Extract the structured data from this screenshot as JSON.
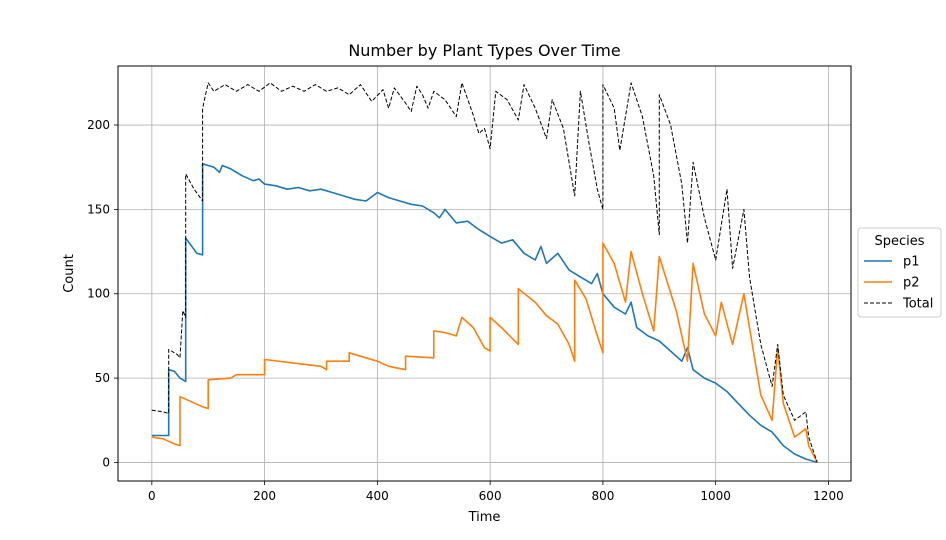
{
  "chart_data": {
    "type": "line",
    "title": "Number by Plant Types Over Time",
    "xlabel": "Time",
    "ylabel": "Count",
    "xlim": [
      -60,
      1240
    ],
    "ylim": [
      -11,
      235
    ],
    "xticks": [
      0,
      200,
      400,
      600,
      800,
      1000,
      1200
    ],
    "yticks": [
      0,
      50,
      100,
      150,
      200
    ],
    "grid": true,
    "legend": {
      "title": "Species",
      "placement": "right-outside"
    },
    "series": [
      {
        "name": "p1",
        "color": "#1f77b4",
        "style": "solid",
        "points": [
          [
            0,
            16
          ],
          [
            30,
            16
          ],
          [
            30,
            55
          ],
          [
            40,
            54
          ],
          [
            50,
            50
          ],
          [
            60,
            48
          ],
          [
            60,
            133
          ],
          [
            80,
            124
          ],
          [
            90,
            123
          ],
          [
            90,
            177
          ],
          [
            100,
            176
          ],
          [
            110,
            175
          ],
          [
            120,
            172
          ],
          [
            125,
            176
          ],
          [
            140,
            174
          ],
          [
            160,
            170
          ],
          [
            180,
            167
          ],
          [
            190,
            168
          ],
          [
            200,
            165
          ],
          [
            220,
            164
          ],
          [
            240,
            162
          ],
          [
            260,
            163
          ],
          [
            280,
            161
          ],
          [
            300,
            162
          ],
          [
            320,
            160
          ],
          [
            340,
            158
          ],
          [
            360,
            156
          ],
          [
            380,
            155
          ],
          [
            400,
            160
          ],
          [
            420,
            157
          ],
          [
            440,
            155
          ],
          [
            460,
            153
          ],
          [
            480,
            152
          ],
          [
            500,
            148
          ],
          [
            510,
            145
          ],
          [
            520,
            150
          ],
          [
            540,
            142
          ],
          [
            560,
            143
          ],
          [
            580,
            138
          ],
          [
            600,
            134
          ],
          [
            620,
            130
          ],
          [
            640,
            132
          ],
          [
            660,
            124
          ],
          [
            680,
            120
          ],
          [
            690,
            128
          ],
          [
            700,
            118
          ],
          [
            720,
            124
          ],
          [
            740,
            114
          ],
          [
            760,
            110
          ],
          [
            780,
            106
          ],
          [
            790,
            112
          ],
          [
            800,
            100
          ],
          [
            820,
            92
          ],
          [
            840,
            88
          ],
          [
            850,
            95
          ],
          [
            860,
            80
          ],
          [
            880,
            75
          ],
          [
            900,
            72
          ],
          [
            920,
            66
          ],
          [
            940,
            60
          ],
          [
            950,
            68
          ],
          [
            960,
            55
          ],
          [
            980,
            50
          ],
          [
            1000,
            47
          ],
          [
            1020,
            42
          ],
          [
            1040,
            35
          ],
          [
            1060,
            28
          ],
          [
            1080,
            22
          ],
          [
            1100,
            18
          ],
          [
            1110,
            14
          ],
          [
            1120,
            10
          ],
          [
            1140,
            5
          ],
          [
            1160,
            2
          ],
          [
            1180,
            0
          ]
        ]
      },
      {
        "name": "p2",
        "color": "#ff7f0e",
        "style": "solid",
        "points": [
          [
            0,
            15
          ],
          [
            20,
            14
          ],
          [
            40,
            11
          ],
          [
            50,
            10
          ],
          [
            50,
            39
          ],
          [
            70,
            36
          ],
          [
            90,
            33
          ],
          [
            100,
            32
          ],
          [
            100,
            49
          ],
          [
            140,
            50
          ],
          [
            150,
            52
          ],
          [
            200,
            52
          ],
          [
            200,
            61
          ],
          [
            250,
            59
          ],
          [
            300,
            57
          ],
          [
            310,
            55
          ],
          [
            310,
            60
          ],
          [
            350,
            60
          ],
          [
            350,
            65
          ],
          [
            400,
            60
          ],
          [
            420,
            57
          ],
          [
            450,
            55
          ],
          [
            450,
            63
          ],
          [
            500,
            62
          ],
          [
            500,
            78
          ],
          [
            520,
            77
          ],
          [
            540,
            75
          ],
          [
            550,
            86
          ],
          [
            570,
            80
          ],
          [
            590,
            68
          ],
          [
            600,
            66
          ],
          [
            600,
            86
          ],
          [
            620,
            80
          ],
          [
            650,
            70
          ],
          [
            650,
            103
          ],
          [
            680,
            95
          ],
          [
            700,
            87
          ],
          [
            720,
            82
          ],
          [
            740,
            70
          ],
          [
            750,
            60
          ],
          [
            750,
            108
          ],
          [
            770,
            97
          ],
          [
            790,
            75
          ],
          [
            800,
            65
          ],
          [
            800,
            130
          ],
          [
            820,
            118
          ],
          [
            840,
            95
          ],
          [
            850,
            125
          ],
          [
            870,
            100
          ],
          [
            890,
            78
          ],
          [
            900,
            122
          ],
          [
            930,
            90
          ],
          [
            950,
            60
          ],
          [
            960,
            118
          ],
          [
            980,
            88
          ],
          [
            1000,
            75
          ],
          [
            1010,
            95
          ],
          [
            1030,
            70
          ],
          [
            1050,
            100
          ],
          [
            1070,
            60
          ],
          [
            1080,
            40
          ],
          [
            1100,
            25
          ],
          [
            1110,
            68
          ],
          [
            1120,
            35
          ],
          [
            1140,
            15
          ],
          [
            1160,
            20
          ],
          [
            1165,
            10
          ],
          [
            1180,
            0
          ]
        ]
      },
      {
        "name": "Total",
        "color": "#000000",
        "style": "dashed",
        "points": [
          [
            0,
            31
          ],
          [
            20,
            30
          ],
          [
            30,
            29
          ],
          [
            30,
            67
          ],
          [
            45,
            64
          ],
          [
            50,
            62
          ],
          [
            55,
            90
          ],
          [
            60,
            86
          ],
          [
            60,
            171
          ],
          [
            75,
            162
          ],
          [
            90,
            155
          ],
          [
            90,
            210
          ],
          [
            100,
            225
          ],
          [
            110,
            220
          ],
          [
            130,
            224
          ],
          [
            150,
            220
          ],
          [
            170,
            224
          ],
          [
            190,
            220
          ],
          [
            210,
            225
          ],
          [
            230,
            220
          ],
          [
            250,
            223
          ],
          [
            270,
            220
          ],
          [
            290,
            224
          ],
          [
            310,
            220
          ],
          [
            330,
            222
          ],
          [
            350,
            218
          ],
          [
            370,
            224
          ],
          [
            390,
            214
          ],
          [
            410,
            221
          ],
          [
            420,
            210
          ],
          [
            430,
            222
          ],
          [
            450,
            213
          ],
          [
            460,
            208
          ],
          [
            470,
            223
          ],
          [
            480,
            218
          ],
          [
            490,
            210
          ],
          [
            500,
            220
          ],
          [
            520,
            215
          ],
          [
            540,
            205
          ],
          [
            550,
            225
          ],
          [
            570,
            206
          ],
          [
            580,
            195
          ],
          [
            590,
            198
          ],
          [
            600,
            186
          ],
          [
            610,
            220
          ],
          [
            630,
            215
          ],
          [
            650,
            203
          ],
          [
            660,
            224
          ],
          [
            680,
            210
          ],
          [
            700,
            192
          ],
          [
            710,
            215
          ],
          [
            730,
            198
          ],
          [
            750,
            158
          ],
          [
            760,
            220
          ],
          [
            775,
            190
          ],
          [
            790,
            162
          ],
          [
            800,
            150
          ],
          [
            800,
            224
          ],
          [
            820,
            210
          ],
          [
            830,
            185
          ],
          [
            850,
            225
          ],
          [
            870,
            205
          ],
          [
            890,
            170
          ],
          [
            900,
            135
          ],
          [
            900,
            218
          ],
          [
            920,
            200
          ],
          [
            940,
            165
          ],
          [
            950,
            130
          ],
          [
            960,
            178
          ],
          [
            980,
            145
          ],
          [
            1000,
            120
          ],
          [
            1020,
            162
          ],
          [
            1030,
            115
          ],
          [
            1050,
            150
          ],
          [
            1060,
            110
          ],
          [
            1070,
            90
          ],
          [
            1080,
            70
          ],
          [
            1100,
            45
          ],
          [
            1110,
            70
          ],
          [
            1120,
            40
          ],
          [
            1140,
            25
          ],
          [
            1160,
            30
          ],
          [
            1165,
            15
          ],
          [
            1180,
            0
          ]
        ]
      }
    ]
  }
}
